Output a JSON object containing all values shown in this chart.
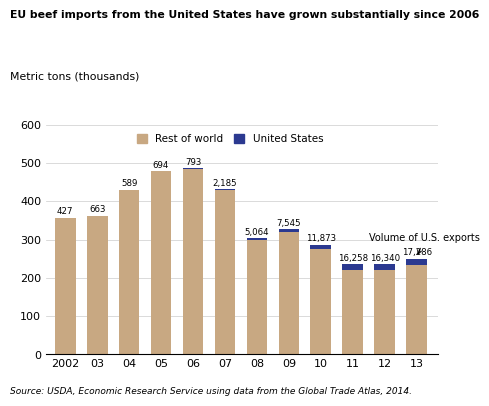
{
  "title": "EU beef imports from the United States have grown substantially since 2006",
  "ylabel": "Metric tons (thousands)",
  "source": "Source: USDA, Economic Research Service using data from the Global Trade Atlas, 2014.",
  "years": [
    "2002",
    "03",
    "04",
    "05",
    "06",
    "07",
    "08",
    "09",
    "10",
    "11",
    "12",
    "13"
  ],
  "rest_of_world": [
    357,
    362,
    430,
    478,
    485,
    430,
    298,
    320,
    275,
    220,
    220,
    233
  ],
  "us_values_thousands": [
    0.427,
    0.663,
    0.589,
    0.694,
    0.793,
    2.185,
    5.064,
    7.545,
    11.873,
    16.258,
    16.34,
    17.286
  ],
  "label_strings": [
    "427",
    "663",
    "589",
    "694",
    "793",
    "2,185",
    "5,064",
    "7,545",
    "11,873",
    "16,258",
    "16,340",
    "17,286"
  ],
  "row_color": "#C8A882",
  "us_color": "#2B3990",
  "annotation": "Volume of U.S. exports",
  "ylim": [
    0,
    600
  ],
  "yticks": [
    0,
    100,
    200,
    300,
    400,
    500,
    600
  ],
  "background_color": "#FFFFFF"
}
